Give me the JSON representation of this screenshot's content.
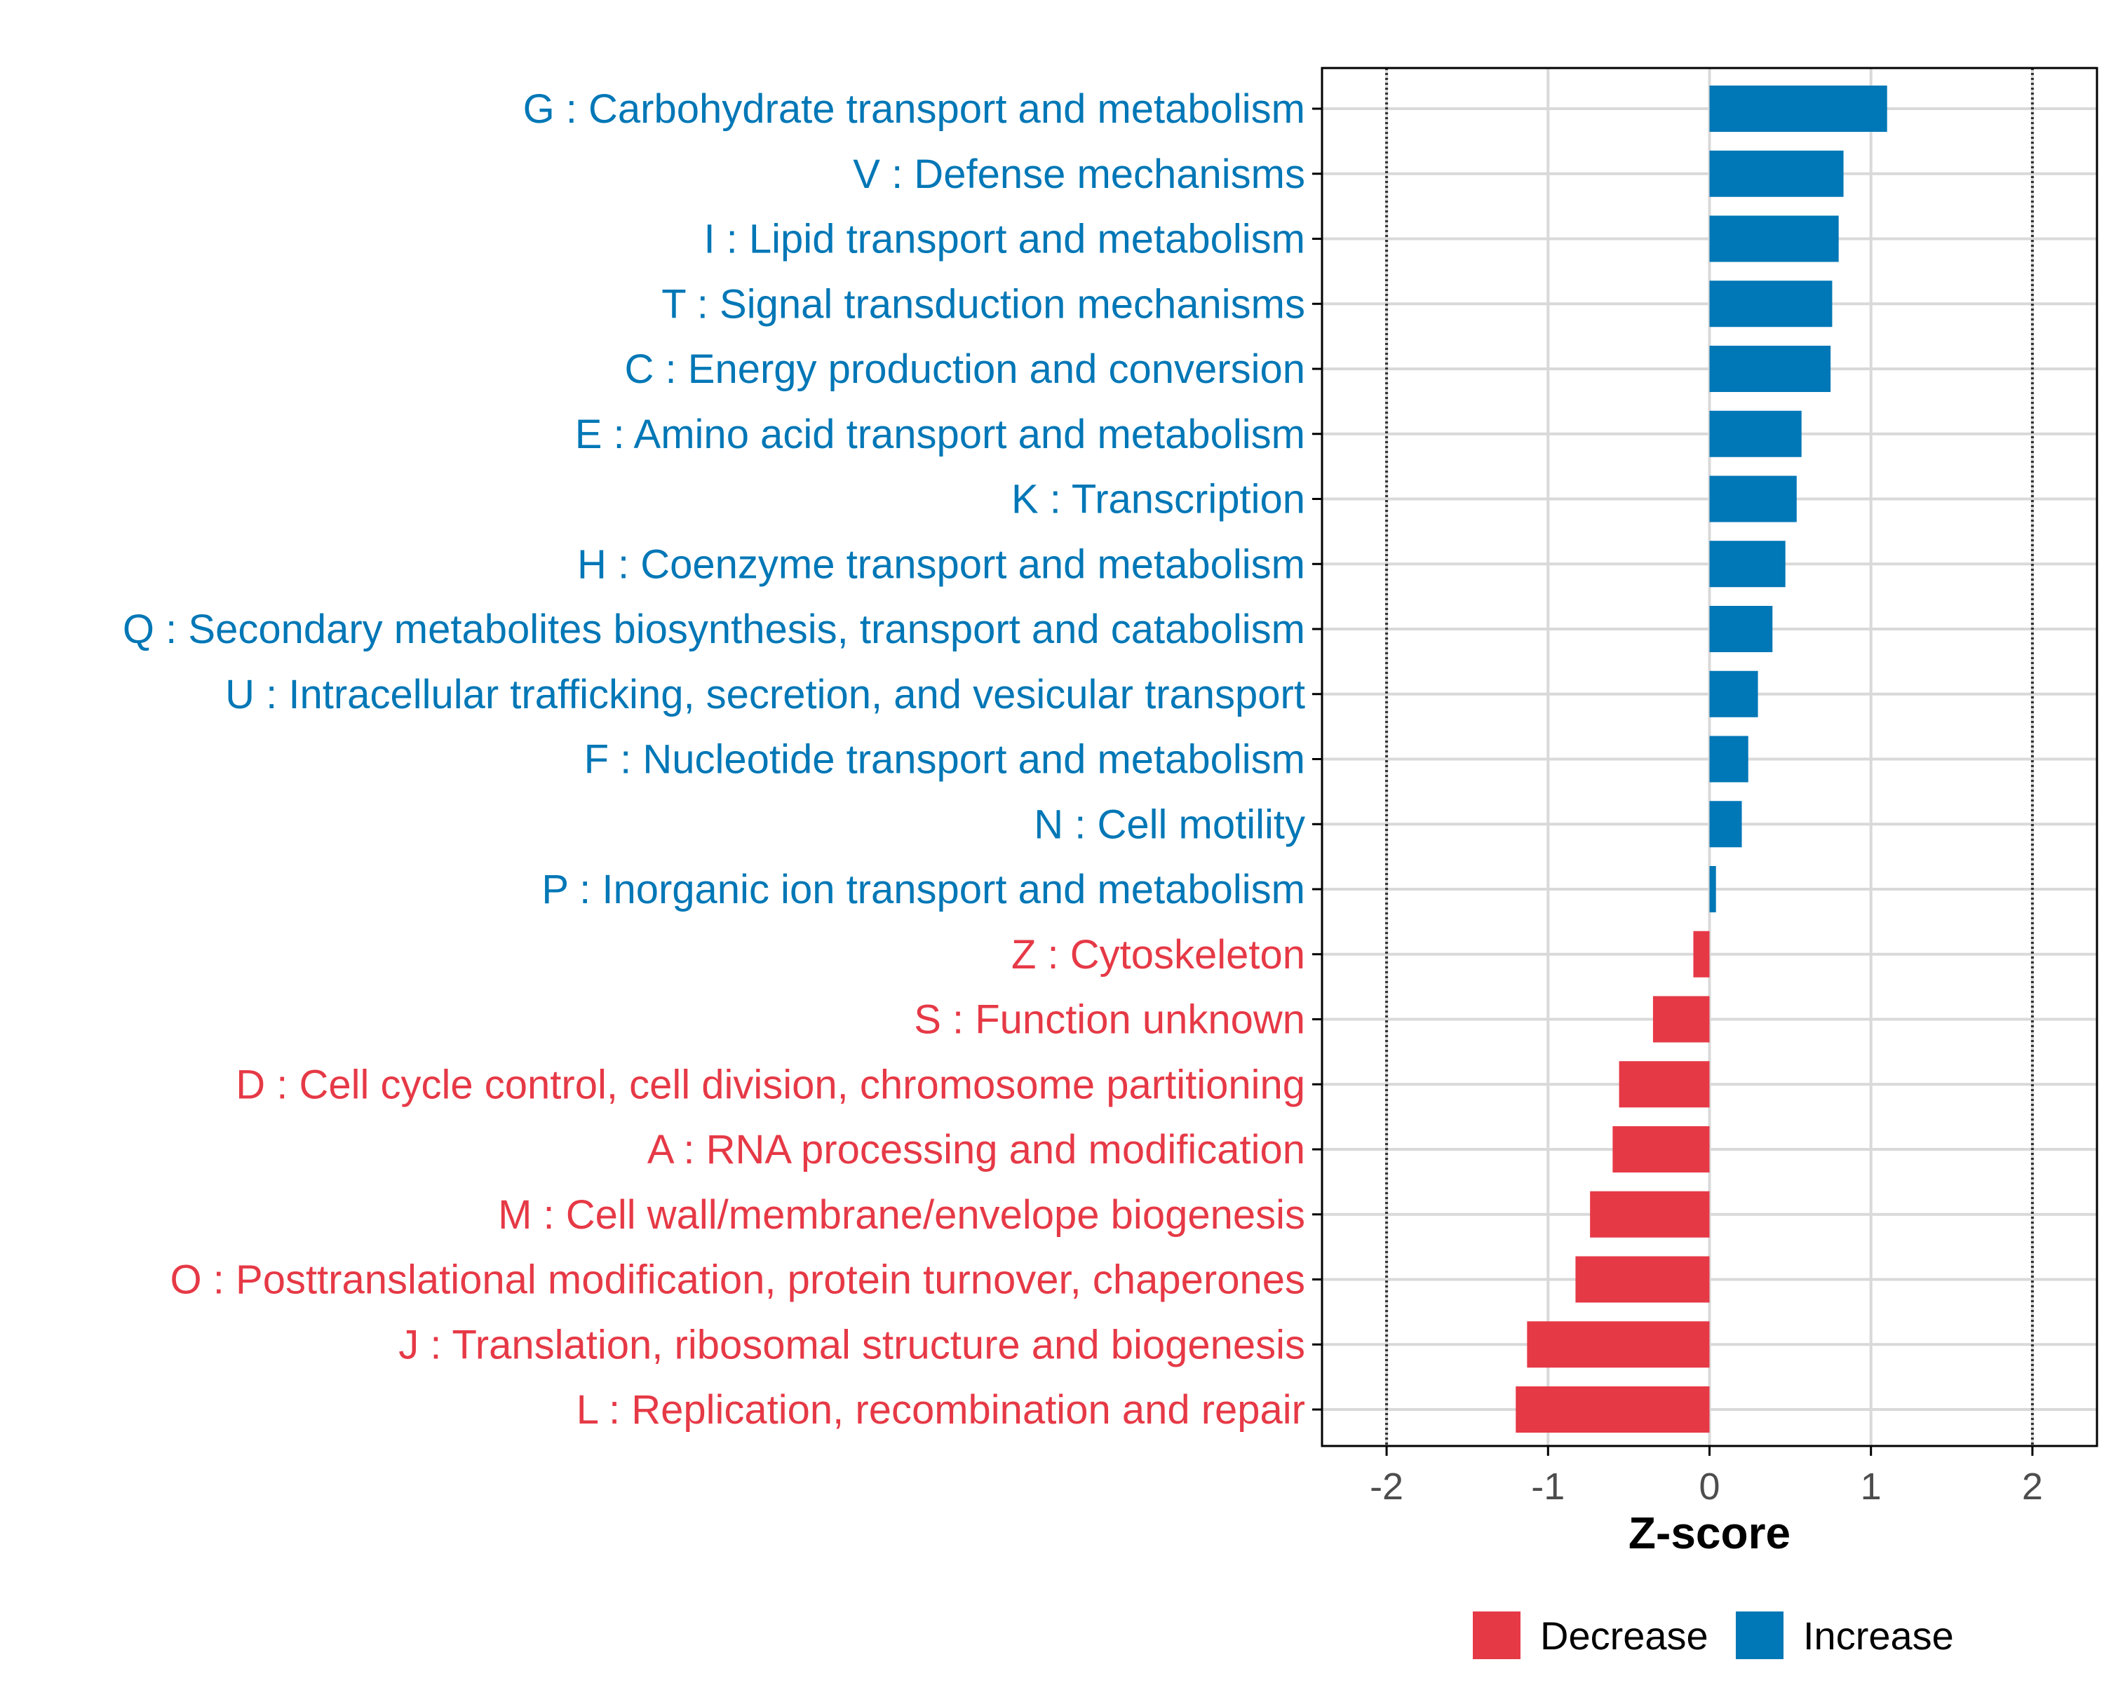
{
  "colors": {
    "increase": "#0077b6",
    "decrease": "#e63946",
    "grid": "#d9d9d9",
    "reference_line": "#333333",
    "axis": "#000000",
    "tick_text": "#4d4d4d"
  },
  "chart_data": {
    "type": "bar",
    "orientation": "horizontal",
    "title": "",
    "xlabel": "Z-score",
    "ylabel": "",
    "xlim": [
      -2.4,
      2.4
    ],
    "x_ticks": [
      -2,
      -1,
      0,
      1,
      2
    ],
    "x_tick_labels": [
      "-2",
      "-1",
      "0",
      "1",
      "2"
    ],
    "reference_lines": [
      -2,
      2
    ],
    "grid": true,
    "legend_position": "bottom",
    "series": [
      {
        "name": "Decrease",
        "color": "#e63946"
      },
      {
        "name": "Increase",
        "color": "#0077b6"
      }
    ],
    "categories": [
      "G : Carbohydrate transport and metabolism",
      "V : Defense mechanisms",
      "I : Lipid transport and metabolism",
      "T : Signal transduction mechanisms",
      "C : Energy production and conversion",
      "E : Amino acid transport and metabolism",
      "K : Transcription",
      "H : Coenzyme transport and metabolism",
      "Q : Secondary metabolites biosynthesis, transport and catabolism",
      "U : Intracellular trafficking, secretion, and vesicular transport",
      "F : Nucleotide transport and metabolism",
      "N : Cell motility",
      "P : Inorganic ion transport and metabolism",
      "Z : Cytoskeleton",
      "S : Function unknown",
      "D : Cell cycle control, cell division, chromosome partitioning",
      "A : RNA processing and modification",
      "M : Cell wall/membrane/envelope biogenesis",
      "O : Posttranslational modification, protein turnover, chaperones",
      "J : Translation, ribosomal structure and biogenesis",
      "L : Replication, recombination and repair"
    ],
    "values": [
      1.1,
      0.83,
      0.8,
      0.76,
      0.75,
      0.57,
      0.54,
      0.47,
      0.39,
      0.3,
      0.24,
      0.2,
      0.04,
      -0.1,
      -0.35,
      -0.56,
      -0.6,
      -0.74,
      -0.83,
      -1.13,
      -1.2
    ],
    "groups": [
      "Increase",
      "Increase",
      "Increase",
      "Increase",
      "Increase",
      "Increase",
      "Increase",
      "Increase",
      "Increase",
      "Increase",
      "Increase",
      "Increase",
      "Increase",
      "Decrease",
      "Decrease",
      "Decrease",
      "Decrease",
      "Decrease",
      "Decrease",
      "Decrease",
      "Decrease"
    ]
  },
  "legend": {
    "items": [
      {
        "label": "Decrease",
        "color": "#e63946"
      },
      {
        "label": "Increase",
        "color": "#0077b6"
      }
    ]
  }
}
